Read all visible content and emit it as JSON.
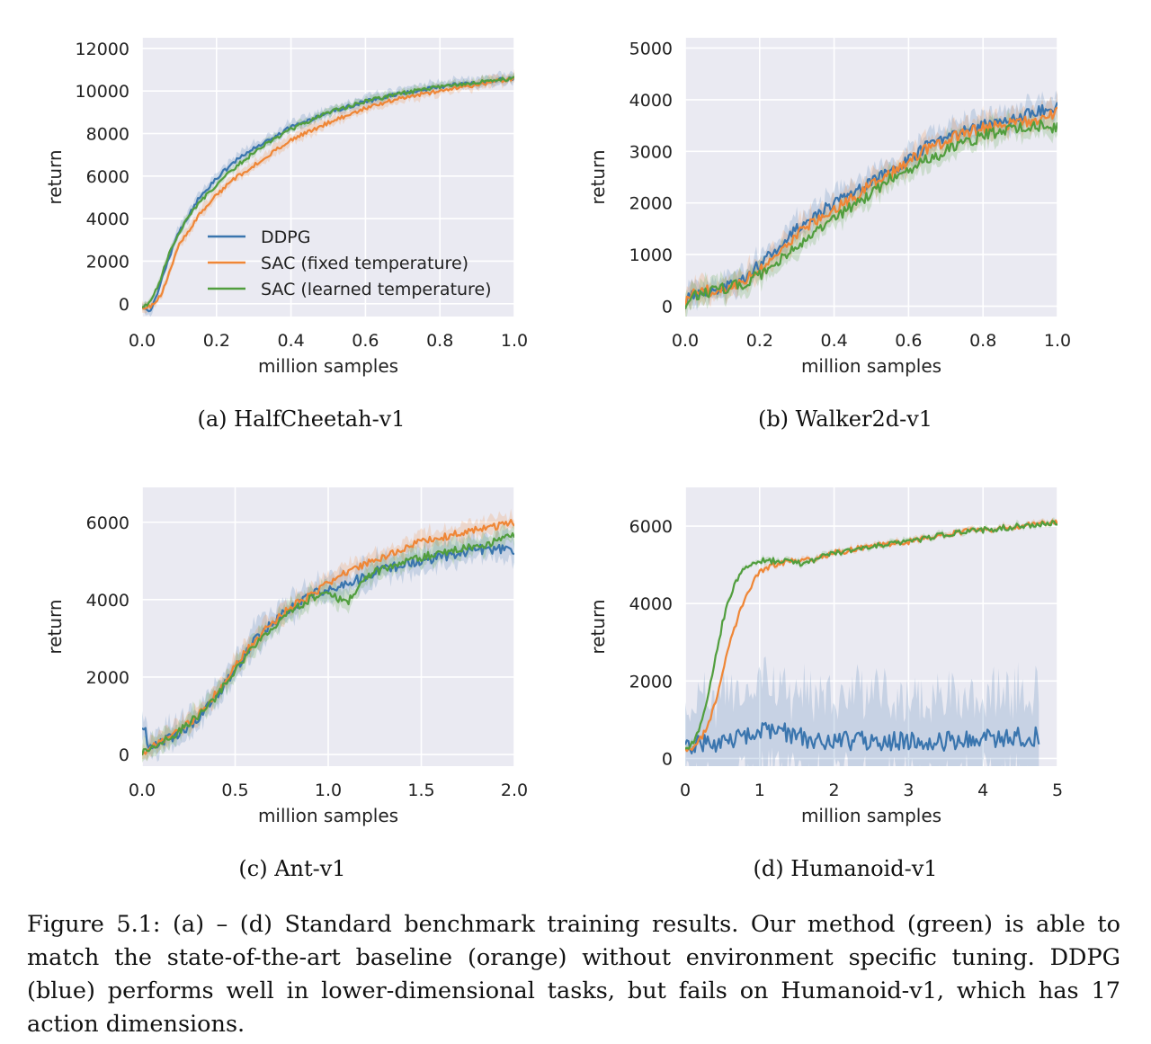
{
  "colors": {
    "background": "#eaeaf2",
    "grid": "#ffffff",
    "ddpg": "#3a75ae",
    "sac_fixed": "#ef8636",
    "sac_learned": "#519e3e"
  },
  "legend": {
    "placement": "lower-right",
    "entries": [
      "DDPG",
      "SAC (fixed temperature)",
      "SAC (learned temperature)"
    ]
  },
  "chart_data": [
    {
      "type": "line",
      "subcaption": "(a) HalfCheetah-v1",
      "xlabel": "million samples",
      "ylabel": "return",
      "xlim": [
        0,
        1.0
      ],
      "ylim": [
        -600,
        12500
      ],
      "xticks": [
        "0.0",
        "0.2",
        "0.4",
        "0.6",
        "0.8",
        "1.0"
      ],
      "xtick_values": [
        0,
        0.2,
        0.4,
        0.6,
        0.8,
        1.0
      ],
      "yticks": [
        "0",
        "2000",
        "4000",
        "6000",
        "8000",
        "10000",
        "12000"
      ],
      "ytick_values": [
        0,
        2000,
        4000,
        6000,
        8000,
        10000,
        12000
      ],
      "x": [
        0,
        0.025,
        0.05,
        0.075,
        0.1,
        0.15,
        0.2,
        0.25,
        0.3,
        0.35,
        0.4,
        0.5,
        0.6,
        0.7,
        0.8,
        0.9,
        1.0
      ],
      "series": [
        {
          "name": "DDPG",
          "color_key": "ddpg",
          "noise": 0.02,
          "band": 0.12,
          "values": [
            -200,
            -300,
            1000,
            2300,
            3400,
            4900,
            5900,
            6700,
            7300,
            7800,
            8300,
            9000,
            9500,
            9900,
            10200,
            10400,
            10600
          ]
        },
        {
          "name": "SAC (fixed temperature)",
          "color_key": "sac_fixed",
          "noise": 0.02,
          "band": 0.12,
          "values": [
            -200,
            -100,
            400,
            1500,
            2800,
            4100,
            5100,
            5900,
            6500,
            7100,
            7700,
            8500,
            9200,
            9700,
            10000,
            10300,
            10600
          ]
        },
        {
          "name": "SAC (learned temperature)",
          "color_key": "sac_learned",
          "noise": 0.02,
          "band": 0.08,
          "values": [
            -200,
            100,
            1200,
            2500,
            3400,
            4700,
            5600,
            6400,
            7100,
            7700,
            8200,
            9000,
            9500,
            9900,
            10200,
            10400,
            10600
          ]
        }
      ]
    },
    {
      "type": "line",
      "subcaption": "(b) Walker2d-v1",
      "xlabel": "million samples",
      "ylabel": "return",
      "xlim": [
        0,
        1.0
      ],
      "ylim": [
        -200,
        5200
      ],
      "xticks": [
        "0.0",
        "0.2",
        "0.4",
        "0.6",
        "0.8",
        "1.0"
      ],
      "xtick_values": [
        0,
        0.2,
        0.4,
        0.6,
        0.8,
        1.0
      ],
      "yticks": [
        "0",
        "1000",
        "2000",
        "3000",
        "4000",
        "5000"
      ],
      "ytick_values": [
        0,
        1000,
        2000,
        3000,
        4000,
        5000
      ],
      "x": [
        0,
        0.02,
        0.05,
        0.1,
        0.15,
        0.2,
        0.25,
        0.3,
        0.35,
        0.4,
        0.45,
        0.5,
        0.55,
        0.6,
        0.65,
        0.7,
        0.75,
        0.8,
        0.85,
        0.9,
        0.95,
        1.0
      ],
      "series": [
        {
          "name": "DDPG",
          "color_key": "ddpg",
          "noise": 0.06,
          "band": 0.25,
          "values": [
            50,
            250,
            280,
            350,
            500,
            800,
            1150,
            1500,
            1750,
            2000,
            2200,
            2400,
            2600,
            2850,
            3100,
            3300,
            3400,
            3500,
            3550,
            3650,
            3800,
            3850
          ]
        },
        {
          "name": "SAC (fixed temperature)",
          "color_key": "sac_fixed",
          "noise": 0.06,
          "band": 0.25,
          "values": [
            50,
            250,
            280,
            350,
            480,
            700,
            1050,
            1400,
            1650,
            1900,
            2100,
            2350,
            2550,
            2800,
            3050,
            3200,
            3350,
            3450,
            3500,
            3550,
            3600,
            3750
          ]
        },
        {
          "name": "SAC (learned temperature)",
          "color_key": "sac_learned",
          "noise": 0.06,
          "band": 0.25,
          "values": [
            50,
            230,
            260,
            330,
            420,
            600,
            850,
            1150,
            1400,
            1700,
            1950,
            2200,
            2450,
            2650,
            2850,
            3000,
            3150,
            3300,
            3400,
            3450,
            3500,
            3450
          ]
        }
      ]
    },
    {
      "type": "line",
      "subcaption": "(c) Ant-v1",
      "xlabel": "million samples",
      "ylabel": "return",
      "xlim": [
        0,
        2.0
      ],
      "ylim": [
        -300,
        6900
      ],
      "xticks": [
        "0.0",
        "0.5",
        "1.0",
        "1.5",
        "2.0"
      ],
      "xtick_values": [
        0,
        0.5,
        1.0,
        1.5,
        2.0
      ],
      "yticks": [
        "0",
        "2000",
        "4000",
        "6000"
      ],
      "ytick_values": [
        0,
        2000,
        4000,
        6000
      ],
      "x": [
        0,
        0.02,
        0.03,
        0.1,
        0.2,
        0.3,
        0.4,
        0.5,
        0.6,
        0.7,
        0.8,
        0.9,
        1.0,
        1.1,
        1.2,
        1.3,
        1.4,
        1.5,
        1.6,
        1.7,
        1.8,
        1.9,
        2.0
      ],
      "series": [
        {
          "name": "DDPG",
          "color_key": "ddpg",
          "noise": 0.05,
          "band": 0.3,
          "values": [
            700,
            700,
            150,
            300,
            550,
            900,
            1500,
            2200,
            2900,
            3400,
            3800,
            4100,
            4300,
            4400,
            4600,
            4800,
            4900,
            5000,
            5100,
            5200,
            5300,
            5300,
            5300
          ]
        },
        {
          "name": "SAC (fixed temperature)",
          "color_key": "sac_fixed",
          "noise": 0.04,
          "band": 0.2,
          "values": [
            0,
            100,
            150,
            300,
            600,
            1000,
            1600,
            2300,
            2900,
            3400,
            3800,
            4100,
            4400,
            4700,
            4900,
            5100,
            5300,
            5500,
            5600,
            5700,
            5800,
            5900,
            6000
          ]
        },
        {
          "name": "SAC (learned temperature)",
          "color_key": "sac_learned",
          "noise": 0.04,
          "band": 0.22,
          "values": [
            0,
            100,
            150,
            300,
            600,
            1000,
            1500,
            2200,
            2800,
            3300,
            3700,
            4000,
            4200,
            3900,
            4600,
            4800,
            5000,
            5100,
            5200,
            5300,
            5400,
            5500,
            5700
          ]
        }
      ]
    },
    {
      "type": "line",
      "subcaption": "(d) Humanoid-v1",
      "xlabel": "million samples",
      "ylabel": "return",
      "xlim": [
        0,
        5
      ],
      "ylim": [
        -200,
        7000
      ],
      "xticks": [
        "0",
        "1",
        "2",
        "3",
        "4",
        "5"
      ],
      "xtick_values": [
        0,
        1,
        2,
        3,
        4,
        5
      ],
      "yticks": [
        "0",
        "2000",
        "4000",
        "6000"
      ],
      "ytick_values": [
        0,
        2000,
        4000,
        6000
      ],
      "x": [
        0,
        0.1,
        0.2,
        0.3,
        0.4,
        0.5,
        0.6,
        0.7,
        0.8,
        0.9,
        1.0,
        1.2,
        1.4,
        1.6,
        1.8,
        2.0,
        2.5,
        3.0,
        3.5,
        4.0,
        4.5,
        5.0
      ],
      "series": [
        {
          "name": "DDPG",
          "color_key": "ddpg",
          "noise": 0.1,
          "band": 1.0,
          "x_end": 4.75,
          "values": [
            200,
            300,
            350,
            400,
            420,
            450,
            470,
            500,
            550,
            600,
            650,
            700,
            650,
            500,
            450,
            450,
            450,
            450,
            450,
            500,
            550,
            600
          ]
        },
        {
          "name": "SAC (fixed temperature)",
          "color_key": "sac_fixed",
          "noise": 0.03,
          "band": 0.06,
          "values": [
            200,
            300,
            500,
            800,
            1400,
            2200,
            3000,
            3600,
            4100,
            4500,
            4800,
            5000,
            5100,
            5100,
            5200,
            5300,
            5500,
            5600,
            5800,
            5900,
            6000,
            6100
          ]
        },
        {
          "name": "SAC (learned temperature)",
          "color_key": "sac_learned",
          "noise": 0.03,
          "band": 0.06,
          "values": [
            200,
            400,
            800,
            1500,
            2500,
            3500,
            4200,
            4600,
            4900,
            5000,
            5100,
            5100,
            5100,
            5000,
            5200,
            5300,
            5500,
            5600,
            5800,
            5900,
            6000,
            6100
          ]
        }
      ]
    }
  ],
  "caption": "Figure 5.1: (a) – (d) Standard benchmark training results. Our method (green) is able to match the state-of-the-art baseline (orange) without environment specific tuning. DDPG (blue) performs well in lower-dimensional tasks, but fails on Humanoid-v1, which has 17 action dimensions."
}
